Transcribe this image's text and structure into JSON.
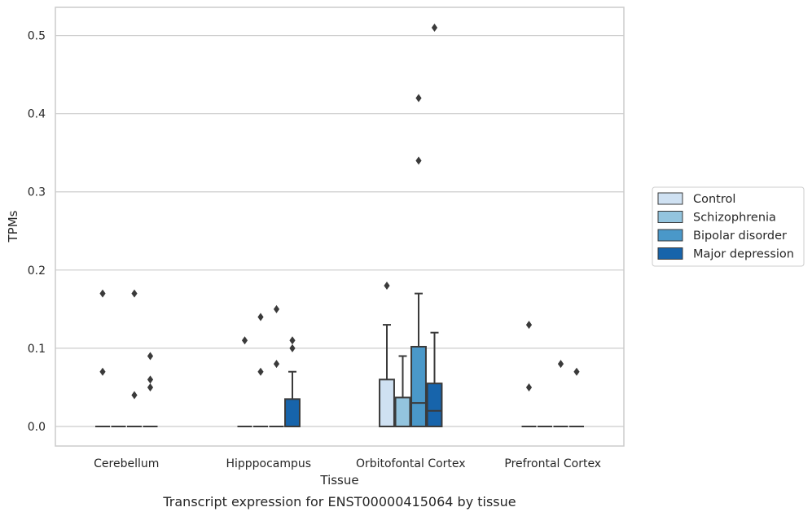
{
  "chart_data": {
    "type": "box",
    "xlabel": "Tissue",
    "ylabel": "TPMs",
    "caption": "Transcript expression for ENST00000415064 by tissue",
    "ylim": [
      -0.025,
      0.536
    ],
    "yticks": [
      "0.0",
      "0.1",
      "0.2",
      "0.3",
      "0.4",
      "0.5"
    ],
    "ytick_values": [
      0,
      0.1,
      0.2,
      0.3,
      0.4,
      0.5
    ],
    "grid": true,
    "legend_position": "right",
    "categories": [
      "Cerebellum",
      "Hipppocampus",
      "Orbitofontal Cortex",
      "Prefrontal Cortex"
    ],
    "series": [
      {
        "name": "Control",
        "color": "#cfe1f2",
        "boxes": [
          {
            "q1": 0,
            "median": 0,
            "q3": 0,
            "whisker_low": 0,
            "whisker_high": 0,
            "outliers": [
              0.07,
              0.17
            ]
          },
          {
            "q1": 0,
            "median": 0,
            "q3": 0,
            "whisker_low": 0,
            "whisker_high": 0,
            "outliers": [
              0.11
            ]
          },
          {
            "q1": 0,
            "median": 0,
            "q3": 0.06,
            "whisker_low": 0,
            "whisker_high": 0.13,
            "outliers": [
              0.18
            ]
          },
          {
            "q1": 0,
            "median": 0,
            "q3": 0,
            "whisker_low": 0,
            "whisker_high": 0,
            "outliers": [
              0.05,
              0.13
            ]
          }
        ]
      },
      {
        "name": "Schizophrenia",
        "color": "#93c4de",
        "boxes": [
          {
            "q1": 0,
            "median": 0,
            "q3": 0,
            "whisker_low": 0,
            "whisker_high": 0,
            "outliers": []
          },
          {
            "q1": 0,
            "median": 0,
            "q3": 0,
            "whisker_low": 0,
            "whisker_high": 0,
            "outliers": [
              0.07,
              0.14
            ]
          },
          {
            "q1": 0,
            "median": 0,
            "q3": 0.037,
            "whisker_low": 0,
            "whisker_high": 0.09,
            "outliers": []
          },
          {
            "q1": 0,
            "median": 0,
            "q3": 0,
            "whisker_low": 0,
            "whisker_high": 0,
            "outliers": []
          }
        ]
      },
      {
        "name": "Bipolar disorder",
        "color": "#4a98c9",
        "boxes": [
          {
            "q1": 0,
            "median": 0,
            "q3": 0,
            "whisker_low": 0,
            "whisker_high": 0,
            "outliers": [
              0.04,
              0.17
            ]
          },
          {
            "q1": 0,
            "median": 0,
            "q3": 0,
            "whisker_low": 0,
            "whisker_high": 0,
            "outliers": [
              0.08,
              0.15
            ]
          },
          {
            "q1": 0,
            "median": 0.03,
            "q3": 0.102,
            "whisker_low": 0,
            "whisker_high": 0.17,
            "outliers": [
              0.34,
              0.42
            ]
          },
          {
            "q1": 0,
            "median": 0,
            "q3": 0,
            "whisker_low": 0,
            "whisker_high": 0,
            "outliers": [
              0.08
            ]
          }
        ]
      },
      {
        "name": "Major depression",
        "color": "#1764ab",
        "boxes": [
          {
            "q1": 0,
            "median": 0,
            "q3": 0,
            "whisker_low": 0,
            "whisker_high": 0,
            "outliers": [
              0.05,
              0.06,
              0.09
            ]
          },
          {
            "q1": 0,
            "median": 0,
            "q3": 0.035,
            "whisker_low": 0,
            "whisker_high": 0.07,
            "outliers": [
              0.1,
              0.11
            ]
          },
          {
            "q1": 0,
            "median": 0.02,
            "q3": 0.055,
            "whisker_low": 0,
            "whisker_high": 0.12,
            "outliers": [
              0.51
            ]
          },
          {
            "q1": 0,
            "median": 0,
            "q3": 0,
            "whisker_low": 0,
            "whisker_high": 0,
            "outliers": [
              0.07
            ]
          }
        ]
      }
    ]
  }
}
